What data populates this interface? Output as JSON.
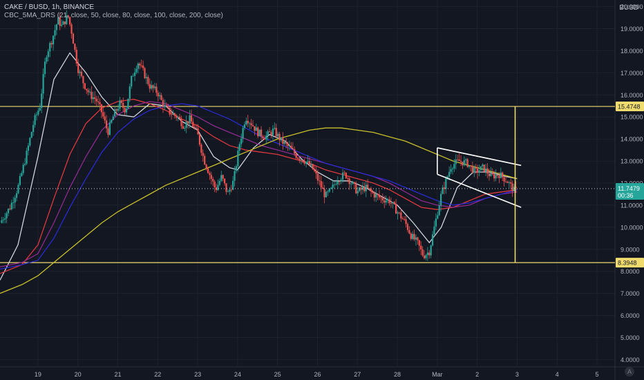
{
  "header": {
    "symbol_line": "CAKE / BUSD, 1h, BINANCE",
    "indicator_line": "CBC_5MA_DRS (21, close, 50, close, 80, close, 100, close, 200, close)"
  },
  "quote_label": "BUSD",
  "tv_logo": "A",
  "chart_data": {
    "type": "candlestick",
    "title": "CAKE / BUSD, 1h, BINANCE",
    "currency": "BUSD",
    "ylim": [
      3.7,
      20.3
    ],
    "y_ticks": [
      "4.0000",
      "5.0000",
      "6.0000",
      "7.0000",
      "8.0000",
      "9.0000",
      "10.0000",
      "11.0000",
      "12.0000",
      "13.0000",
      "14.0000",
      "15.0000",
      "16.0000",
      "17.0000",
      "18.0000",
      "19.0000",
      "20.0000"
    ],
    "x_ticks": [
      {
        "label": "19",
        "x": 0
      },
      {
        "label": "20",
        "x": 1
      },
      {
        "label": "21",
        "x": 2
      },
      {
        "label": "22",
        "x": 3
      },
      {
        "label": "23",
        "x": 4
      },
      {
        "label": "24",
        "x": 5
      },
      {
        "label": "25",
        "x": 6
      },
      {
        "label": "26",
        "x": 7
      },
      {
        "label": "27",
        "x": 8
      },
      {
        "label": "28",
        "x": 9
      },
      {
        "label": "Mar",
        "x": 10
      },
      {
        "label": "2",
        "x": 11
      },
      {
        "label": "3",
        "x": 12
      },
      {
        "label": "4",
        "x": 13
      },
      {
        "label": "5",
        "x": 14
      }
    ],
    "x_range": [
      -0.95,
      14.45
    ],
    "hlines": [
      {
        "value": 15.4748,
        "label": "15.4748",
        "color": "#f0dc6e"
      },
      {
        "value": 8.3948,
        "label": "8.3948",
        "color": "#f0dc6e"
      }
    ],
    "current_price": {
      "value": 11.7479,
      "label": "11.7479",
      "countdown": "00:36",
      "color": "#26a69a"
    },
    "price_path": [
      [
        -0.95,
        10.2
      ],
      [
        -0.7,
        10.9
      ],
      [
        -0.5,
        11.8
      ],
      [
        -0.3,
        13.2
      ],
      [
        -0.1,
        14.8
      ],
      [
        0.05,
        15.5
      ],
      [
        0.2,
        17.8
      ],
      [
        0.35,
        18.5
      ],
      [
        0.5,
        19.4
      ],
      [
        0.6,
        19.1
      ],
      [
        0.75,
        19.6
      ],
      [
        0.85,
        18.8
      ],
      [
        1.0,
        17.2
      ],
      [
        1.15,
        16.5
      ],
      [
        1.3,
        16.0
      ],
      [
        1.45,
        15.8
      ],
      [
        1.6,
        15.2
      ],
      [
        1.75,
        14.3
      ],
      [
        1.9,
        15.1
      ],
      [
        2.05,
        15.6
      ],
      [
        2.2,
        15.3
      ],
      [
        2.35,
        16.8
      ],
      [
        2.5,
        17.5
      ],
      [
        2.65,
        17.0
      ],
      [
        2.8,
        16.4
      ],
      [
        3.0,
        16.1
      ],
      [
        3.15,
        15.5
      ],
      [
        3.3,
        15.2
      ],
      [
        3.5,
        15.0
      ],
      [
        3.65,
        14.6
      ],
      [
        3.8,
        14.9
      ],
      [
        4.0,
        14.2
      ],
      [
        4.15,
        13.1
      ],
      [
        4.3,
        12.4
      ],
      [
        4.45,
        11.7
      ],
      [
        4.6,
        12.3
      ],
      [
        4.75,
        11.5
      ],
      [
        4.9,
        12.1
      ],
      [
        5.05,
        13.8
      ],
      [
        5.2,
        15.0
      ],
      [
        5.35,
        14.7
      ],
      [
        5.5,
        14.3
      ],
      [
        5.7,
        14.1
      ],
      [
        5.9,
        14.4
      ],
      [
        6.1,
        13.9
      ],
      [
        6.3,
        13.6
      ],
      [
        6.5,
        13.2
      ],
      [
        6.7,
        13.0
      ],
      [
        6.9,
        12.6
      ],
      [
        7.05,
        12.0
      ],
      [
        7.2,
        11.4
      ],
      [
        7.35,
        11.7
      ],
      [
        7.5,
        12.2
      ],
      [
        7.7,
        12.4
      ],
      [
        7.85,
        12.0
      ],
      [
        8.0,
        11.6
      ],
      [
        8.2,
        11.8
      ],
      [
        8.4,
        11.5
      ],
      [
        8.6,
        11.3
      ],
      [
        8.8,
        11.2
      ],
      [
        9.0,
        10.7
      ],
      [
        9.2,
        10.2
      ],
      [
        9.35,
        9.6
      ],
      [
        9.5,
        9.3
      ],
      [
        9.65,
        8.7
      ],
      [
        9.8,
        8.9
      ],
      [
        9.95,
        10.2
      ],
      [
        10.1,
        11.5
      ],
      [
        10.2,
        12.0
      ],
      [
        10.35,
        12.8
      ],
      [
        10.55,
        13.0
      ],
      [
        10.75,
        12.9
      ],
      [
        10.95,
        12.5
      ],
      [
        11.15,
        12.7
      ],
      [
        11.35,
        12.3
      ],
      [
        11.55,
        12.4
      ],
      [
        11.75,
        12.1
      ],
      [
        11.95,
        11.6
      ],
      [
        12.0,
        11.75
      ]
    ],
    "ma_lines": [
      {
        "period": 21,
        "color": "#d1d4dc",
        "points": [
          [
            -0.95,
            7.6
          ],
          [
            -0.5,
            9.2
          ],
          [
            0.0,
            13.2
          ],
          [
            0.4,
            16.7
          ],
          [
            0.8,
            17.9
          ],
          [
            1.2,
            17.0
          ],
          [
            1.6,
            15.9
          ],
          [
            2.0,
            15.1
          ],
          [
            2.4,
            15.0
          ],
          [
            2.8,
            15.6
          ],
          [
            3.2,
            15.5
          ],
          [
            3.6,
            14.8
          ],
          [
            4.0,
            14.4
          ],
          [
            4.4,
            13.2
          ],
          [
            4.8,
            12.7
          ],
          [
            5.0,
            12.6
          ],
          [
            5.4,
            13.6
          ],
          [
            5.8,
            14.2
          ],
          [
            6.2,
            13.9
          ],
          [
            6.6,
            13.1
          ],
          [
            7.0,
            12.5
          ],
          [
            7.4,
            12.1
          ],
          [
            7.8,
            12.1
          ],
          [
            8.2,
            11.8
          ],
          [
            8.6,
            11.4
          ],
          [
            9.0,
            11.0
          ],
          [
            9.4,
            10.2
          ],
          [
            9.8,
            9.3
          ],
          [
            10.1,
            10.0
          ],
          [
            10.5,
            11.8
          ],
          [
            10.9,
            12.5
          ],
          [
            11.3,
            12.5
          ],
          [
            11.7,
            12.3
          ],
          [
            12.0,
            12.2
          ]
        ]
      },
      {
        "period": 50,
        "color": "#e0383e",
        "points": [
          [
            -0.95,
            7.9
          ],
          [
            -0.4,
            8.3
          ],
          [
            0.0,
            9.2
          ],
          [
            0.4,
            11.3
          ],
          [
            0.8,
            13.3
          ],
          [
            1.2,
            14.7
          ],
          [
            1.6,
            15.4
          ],
          [
            2.0,
            15.7
          ],
          [
            2.4,
            15.8
          ],
          [
            2.8,
            15.6
          ],
          [
            3.2,
            15.3
          ],
          [
            3.6,
            14.9
          ],
          [
            4.0,
            14.6
          ],
          [
            4.4,
            14.1
          ],
          [
            4.8,
            13.7
          ],
          [
            5.2,
            13.5
          ],
          [
            5.6,
            13.4
          ],
          [
            6.0,
            13.3
          ],
          [
            6.4,
            13.1
          ],
          [
            6.8,
            12.9
          ],
          [
            7.2,
            12.6
          ],
          [
            7.6,
            12.4
          ],
          [
            8.0,
            12.2
          ],
          [
            8.4,
            12.0
          ],
          [
            8.8,
            11.7
          ],
          [
            9.2,
            11.3
          ],
          [
            9.6,
            10.9
          ],
          [
            10.0,
            10.8
          ],
          [
            10.4,
            10.9
          ],
          [
            10.8,
            11.2
          ],
          [
            11.2,
            11.5
          ],
          [
            11.6,
            11.6
          ],
          [
            12.0,
            11.7
          ]
        ]
      },
      {
        "period": 80,
        "color": "#8e2a8e",
        "points": [
          [
            -0.95,
            8.2
          ],
          [
            -0.4,
            8.4
          ],
          [
            0.0,
            8.8
          ],
          [
            0.4,
            10.2
          ],
          [
            0.8,
            11.8
          ],
          [
            1.2,
            13.2
          ],
          [
            1.6,
            14.4
          ],
          [
            2.0,
            15.1
          ],
          [
            2.4,
            15.5
          ],
          [
            2.8,
            15.7
          ],
          [
            3.2,
            15.6
          ],
          [
            3.6,
            15.3
          ],
          [
            4.0,
            15.0
          ],
          [
            4.4,
            14.6
          ],
          [
            4.8,
            14.3
          ],
          [
            5.2,
            14.0
          ],
          [
            5.6,
            13.7
          ],
          [
            6.0,
            13.5
          ],
          [
            6.4,
            13.3
          ],
          [
            6.8,
            13.1
          ],
          [
            7.2,
            12.9
          ],
          [
            7.6,
            12.7
          ],
          [
            8.0,
            12.5
          ],
          [
            8.4,
            12.3
          ],
          [
            8.8,
            12.0
          ],
          [
            9.2,
            11.6
          ],
          [
            9.6,
            11.2
          ],
          [
            10.0,
            11.0
          ],
          [
            10.4,
            10.9
          ],
          [
            10.8,
            11.0
          ],
          [
            11.2,
            11.3
          ],
          [
            11.6,
            11.5
          ],
          [
            12.0,
            11.6
          ]
        ]
      },
      {
        "period": 100,
        "color": "#2a2ad0",
        "points": [
          [
            -0.95,
            8.1
          ],
          [
            -0.4,
            8.3
          ],
          [
            0.0,
            8.5
          ],
          [
            0.4,
            9.5
          ],
          [
            0.8,
            10.9
          ],
          [
            1.2,
            12.2
          ],
          [
            1.6,
            13.4
          ],
          [
            2.0,
            14.3
          ],
          [
            2.4,
            14.9
          ],
          [
            2.8,
            15.3
          ],
          [
            3.2,
            15.5
          ],
          [
            3.6,
            15.6
          ],
          [
            4.0,
            15.5
          ],
          [
            4.4,
            15.2
          ],
          [
            4.8,
            14.9
          ],
          [
            5.2,
            14.5
          ],
          [
            5.6,
            14.1
          ],
          [
            6.0,
            13.8
          ],
          [
            6.4,
            13.5
          ],
          [
            6.8,
            13.2
          ],
          [
            7.2,
            12.9
          ],
          [
            7.6,
            12.7
          ],
          [
            8.0,
            12.5
          ],
          [
            8.4,
            12.3
          ],
          [
            8.8,
            12.1
          ],
          [
            9.2,
            11.8
          ],
          [
            9.6,
            11.5
          ],
          [
            10.0,
            11.2
          ],
          [
            10.4,
            11.0
          ],
          [
            10.8,
            11.1
          ],
          [
            11.2,
            11.3
          ],
          [
            11.6,
            11.5
          ],
          [
            12.0,
            11.7
          ]
        ]
      },
      {
        "period": 200,
        "color": "#c9c02a",
        "points": [
          [
            -0.95,
            7.0
          ],
          [
            -0.4,
            7.4
          ],
          [
            0.0,
            7.8
          ],
          [
            0.4,
            8.4
          ],
          [
            0.8,
            9.0
          ],
          [
            1.2,
            9.6
          ],
          [
            1.6,
            10.2
          ],
          [
            2.0,
            10.7
          ],
          [
            2.4,
            11.1
          ],
          [
            2.8,
            11.5
          ],
          [
            3.2,
            11.9
          ],
          [
            3.6,
            12.2
          ],
          [
            4.0,
            12.5
          ],
          [
            4.4,
            12.8
          ],
          [
            4.8,
            13.1
          ],
          [
            5.2,
            13.4
          ],
          [
            5.6,
            13.7
          ],
          [
            6.0,
            14.0
          ],
          [
            6.4,
            14.2
          ],
          [
            6.8,
            14.4
          ],
          [
            7.2,
            14.5
          ],
          [
            7.6,
            14.5
          ],
          [
            8.0,
            14.4
          ],
          [
            8.4,
            14.3
          ],
          [
            8.8,
            14.1
          ],
          [
            9.2,
            13.9
          ],
          [
            9.6,
            13.6
          ],
          [
            10.0,
            13.3
          ],
          [
            10.4,
            13.0
          ],
          [
            10.8,
            12.8
          ],
          [
            11.2,
            12.6
          ],
          [
            11.6,
            12.4
          ],
          [
            12.0,
            12.2
          ]
        ]
      }
    ],
    "trendlines": [
      {
        "from": [
          10.0,
          13.6
        ],
        "to": [
          12.1,
          12.8
        ],
        "color": "#ffffff"
      },
      {
        "from": [
          10.0,
          12.4
        ],
        "to": [
          12.1,
          10.9
        ],
        "color": "#ffffff"
      },
      {
        "from": [
          10.0,
          13.6
        ],
        "to": [
          10.0,
          12.4
        ],
        "color": "#ffffff"
      },
      {
        "from": [
          11.95,
          15.4748
        ],
        "to": [
          11.95,
          8.3948
        ],
        "color": "#f0dc6e"
      }
    ]
  }
}
